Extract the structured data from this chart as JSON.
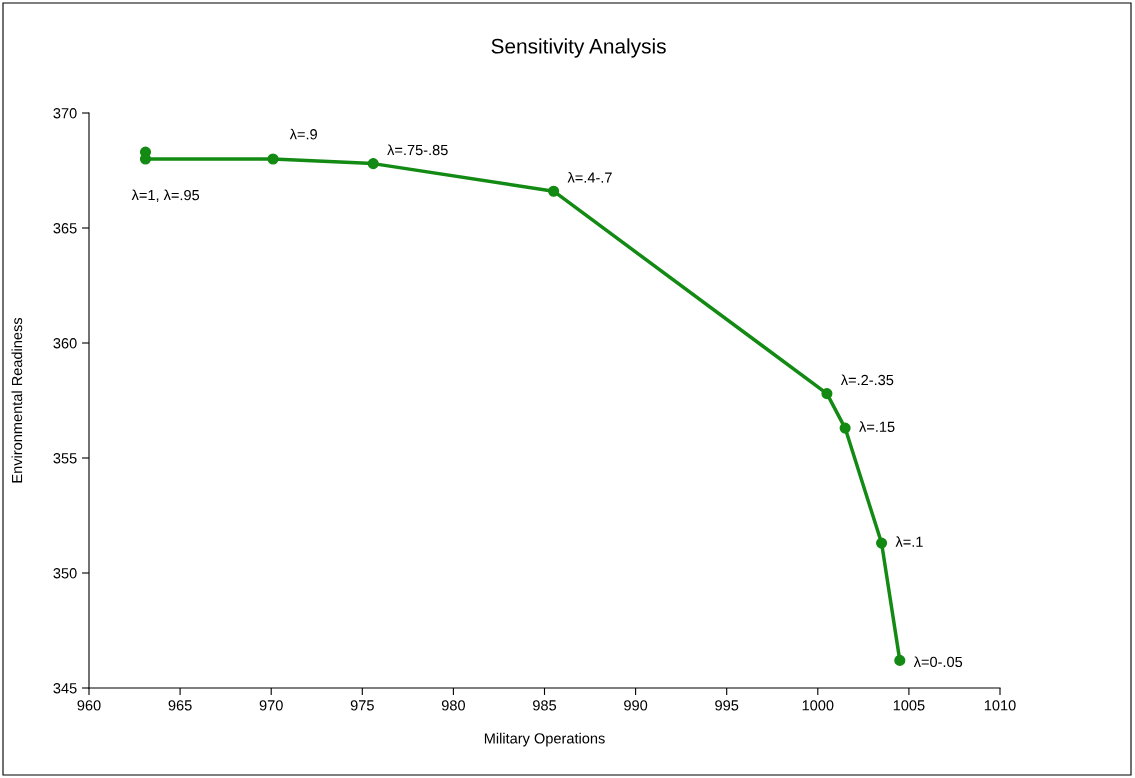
{
  "chart_data": {
    "type": "line",
    "title": "Sensitivity Analysis",
    "xlabel": "Military Operations",
    "ylabel": "Environmental Readiness",
    "series": [
      {
        "color": "#138a13",
        "x": [
          963.1,
          963.1,
          970.1,
          975.6,
          985.5,
          1000.5,
          1001.5,
          1003.5,
          1004.5
        ],
        "values": [
          368.3,
          368.0,
          368.0,
          367.8,
          366.6,
          357.8,
          356.3,
          351.3,
          346.2
        ]
      }
    ],
    "xlim": [
      960,
      1010
    ],
    "xticks": [
      960,
      965,
      970,
      975,
      980,
      985,
      990,
      995,
      1000,
      1005,
      1010
    ],
    "ylim": [
      345,
      370
    ],
    "yticks": [
      345,
      350,
      355,
      360,
      365,
      370
    ],
    "marker": "circle",
    "line_style": "solid",
    "grid": false,
    "legend": false,
    "annotations": [
      {
        "text": "λ=1, λ=.95",
        "x": 963.1,
        "y": 368.0
      },
      {
        "text": "λ=.9",
        "x": 970.1,
        "y": 368.0
      },
      {
        "text": "λ=.75-.85",
        "x": 975.6,
        "y": 367.8
      },
      {
        "text": "λ=.4-.7",
        "x": 985.5,
        "y": 366.6
      },
      {
        "text": "λ=.2-.35",
        "x": 1000.5,
        "y": 357.8
      },
      {
        "text": "λ=.15",
        "x": 1001.5,
        "y": 356.3
      },
      {
        "text": "λ=.1",
        "x": 1003.5,
        "y": 351.3
      },
      {
        "text": "λ=0-.05",
        "x": 1004.5,
        "y": 346.2
      }
    ]
  }
}
